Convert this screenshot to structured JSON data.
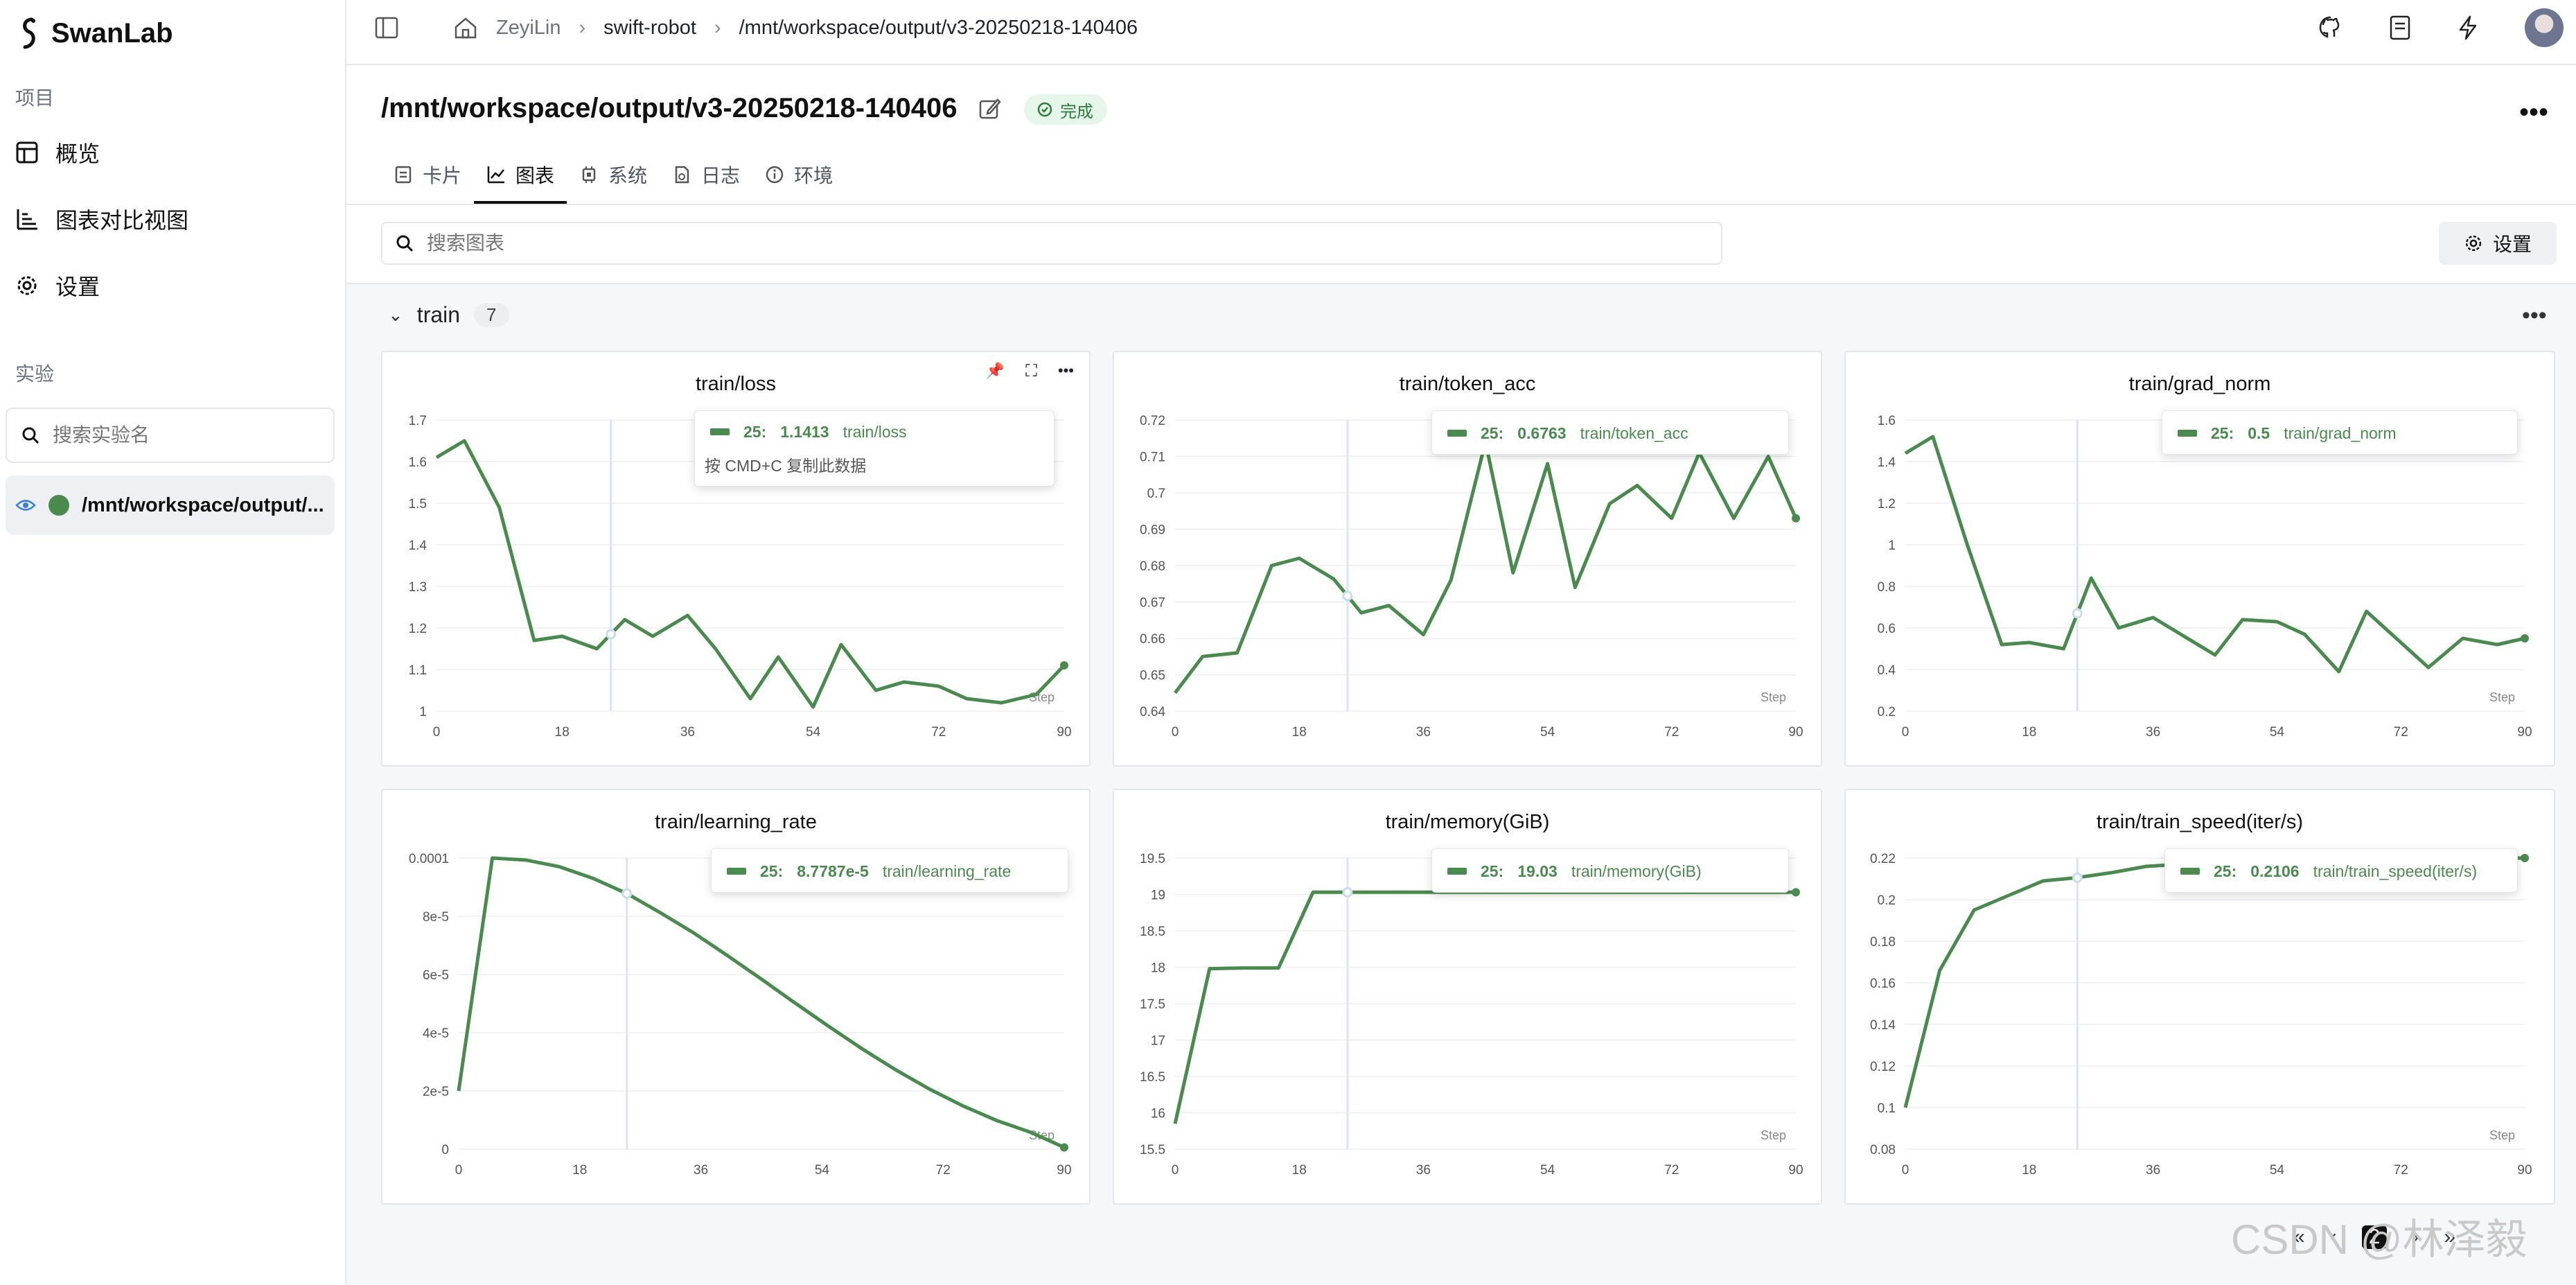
{
  "app": {
    "name": "SwanLab"
  },
  "sidebar": {
    "project_section": "项目",
    "nav": [
      {
        "label": "概览",
        "icon": "table-icon"
      },
      {
        "label": "图表对比视图",
        "icon": "bar-chart-icon"
      },
      {
        "label": "设置",
        "icon": "gear-icon"
      }
    ],
    "experiment_section": "实验",
    "search_placeholder": "搜索实验名",
    "experiment": {
      "name": "/mnt/workspace/output/...",
      "color": "#4a8a4f"
    }
  },
  "topbar": {
    "breadcrumb": [
      "ZeyiLin",
      "swift-robot",
      "/mnt/workspace/output/v3-20250218-140406"
    ]
  },
  "header": {
    "title": "/mnt/workspace/output/v3-20250218-140406",
    "status": "完成",
    "tabs": [
      {
        "label": "卡片",
        "icon": "card-icon"
      },
      {
        "label": "图表",
        "icon": "line-chart-icon"
      },
      {
        "label": "系统",
        "icon": "chip-icon"
      },
      {
        "label": "日志",
        "icon": "log-icon"
      },
      {
        "label": "环境",
        "icon": "info-icon"
      }
    ],
    "active_tab": "图表"
  },
  "toolbar": {
    "search_placeholder": "搜索图表",
    "settings_label": "设置"
  },
  "group": {
    "name": "train",
    "count": "7"
  },
  "colors": {
    "series": "#4a8a4f",
    "hover_line": "#d6e6f5"
  },
  "pager": {
    "first": "«",
    "prev": "‹",
    "current": "2",
    "next": "›",
    "last": "»"
  },
  "watermark": "CSDN @林泽毅",
  "chart_data": [
    {
      "type": "line",
      "title": "train/loss",
      "xlabel": "Step",
      "x": [
        0,
        4,
        9,
        14,
        18,
        23,
        27,
        31,
        36,
        40,
        45,
        49,
        54,
        58,
        63,
        67,
        72,
        76,
        81,
        86,
        90
      ],
      "series": [
        {
          "values": [
            1.61,
            1.65,
            1.49,
            1.17,
            1.18,
            1.15,
            1.22,
            1.18,
            1.23,
            1.15,
            1.03,
            1.13,
            1.01,
            1.16,
            1.05,
            1.07,
            1.06,
            1.03,
            1.02,
            1.04,
            1.11
          ]
        }
      ],
      "xlim": [
        0,
        90
      ],
      "ylim": [
        1,
        1.7
      ],
      "xticks": [
        "0",
        "18",
        "36",
        "54",
        "72",
        "90"
      ],
      "yticks": [
        "1",
        "1.1",
        "1.2",
        "1.3",
        "1.4",
        "1.5",
        "1.6",
        "1.7"
      ],
      "hover": {
        "step": "25:",
        "value": "1.1413",
        "name": "train/loss",
        "hint": "按 CMD+C 复制此数据"
      }
    },
    {
      "type": "line",
      "title": "train/token_acc",
      "xlabel": "Step",
      "x": [
        0,
        4,
        9,
        14,
        18,
        23,
        27,
        31,
        36,
        40,
        45,
        49,
        54,
        58,
        63,
        67,
        72,
        76,
        81,
        86,
        90
      ],
      "series": [
        {
          "values": [
            0.645,
            0.655,
            0.656,
            0.68,
            0.682,
            0.6763,
            0.667,
            0.669,
            0.661,
            0.676,
            0.714,
            0.678,
            0.708,
            0.674,
            0.697,
            0.702,
            0.693,
            0.711,
            0.693,
            0.71,
            0.693
          ]
        }
      ],
      "xlim": [
        0,
        90
      ],
      "ylim": [
        0.64,
        0.72
      ],
      "xticks": [
        "0",
        "18",
        "36",
        "54",
        "72",
        "90"
      ],
      "yticks": [
        "0.64",
        "0.65",
        "0.66",
        "0.67",
        "0.68",
        "0.69",
        "0.7",
        "0.71",
        "0.72"
      ],
      "hover": {
        "step": "25:",
        "value": "0.6763",
        "name": "train/token_acc"
      }
    },
    {
      "type": "line",
      "title": "train/grad_norm",
      "xlabel": "Step",
      "x": [
        0,
        4,
        9,
        14,
        18,
        23,
        27,
        31,
        36,
        40,
        45,
        49,
        54,
        58,
        63,
        67,
        72,
        76,
        81,
        86,
        90
      ],
      "series": [
        {
          "values": [
            1.44,
            1.52,
            1.0,
            0.52,
            0.53,
            0.5,
            0.84,
            0.6,
            0.65,
            0.57,
            0.47,
            0.64,
            0.63,
            0.57,
            0.39,
            0.68,
            0.53,
            0.41,
            0.55,
            0.52,
            0.55
          ]
        }
      ],
      "xlim": [
        0,
        90
      ],
      "ylim": [
        0.2,
        1.6
      ],
      "xticks": [
        "0",
        "18",
        "36",
        "54",
        "72",
        "90"
      ],
      "yticks": [
        "0.2",
        "0.4",
        "0.6",
        "0.8",
        "1",
        "1.2",
        "1.4",
        "1.6"
      ],
      "hover": {
        "step": "25:",
        "value": "0.5",
        "name": "train/grad_norm"
      }
    },
    {
      "type": "line",
      "title": "train/learning_rate",
      "xlabel": "Step",
      "x": [
        0,
        5,
        10,
        15,
        20,
        25,
        30,
        35,
        40,
        45,
        50,
        55,
        60,
        65,
        70,
        75,
        80,
        85,
        90
      ],
      "series": [
        {
          "values": [
            2e-05,
            0.0001,
            9.93e-05,
            9.7e-05,
            9.3e-05,
            8.78e-05,
            8.12e-05,
            7.42e-05,
            6.64e-05,
            5.84e-05,
            5.02e-05,
            4.22e-05,
            3.44e-05,
            2.72e-05,
            2.06e-05,
            1.48e-05,
            9.8e-06,
            5.8e-06,
            6e-07
          ]
        }
      ],
      "xlim": [
        0,
        90
      ],
      "ylim": [
        0,
        0.0001
      ],
      "xticks": [
        "0",
        "18",
        "36",
        "54",
        "72",
        "90"
      ],
      "yticks": [
        "0",
        "2e-5",
        "4e-5",
        "6e-5",
        "8e-5",
        "0.0001"
      ],
      "hover": {
        "step": "25:",
        "value": "8.7787e-5",
        "name": "train/learning_rate"
      }
    },
    {
      "type": "line",
      "title": "train/memory(GiB)",
      "xlabel": "Step",
      "x": [
        0,
        5,
        10,
        15,
        20,
        25,
        30,
        35,
        40,
        45,
        50,
        55,
        60,
        65,
        70,
        75,
        80,
        85,
        90
      ],
      "series": [
        {
          "values": [
            15.85,
            17.98,
            17.99,
            17.99,
            19.03,
            19.03,
            19.03,
            19.03,
            19.03,
            19.03,
            19.03,
            19.03,
            19.03,
            19.03,
            19.03,
            19.03,
            19.03,
            19.03,
            19.03
          ]
        }
      ],
      "xlim": [
        0,
        90
      ],
      "ylim": [
        15.5,
        19.5
      ],
      "xticks": [
        "0",
        "18",
        "36",
        "54",
        "72",
        "90"
      ],
      "yticks": [
        "15.5",
        "16",
        "16.5",
        "17",
        "17.5",
        "18",
        "18.5",
        "19",
        "19.5"
      ],
      "hover": {
        "step": "25:",
        "value": "19.03",
        "name": "train/memory(GiB)"
      }
    },
    {
      "type": "line",
      "title": "train/train_speed(iter/s)",
      "xlabel": "Step",
      "x": [
        0,
        5,
        10,
        15,
        20,
        25,
        30,
        35,
        40,
        45,
        50,
        55,
        60,
        65,
        70,
        75,
        80,
        85,
        90
      ],
      "series": [
        {
          "values": [
            0.1,
            0.166,
            0.195,
            0.202,
            0.209,
            0.2106,
            0.213,
            0.216,
            0.217,
            0.217,
            0.218,
            0.218,
            0.219,
            0.219,
            0.219,
            0.219,
            0.219,
            0.22,
            0.22
          ]
        }
      ],
      "xlim": [
        0,
        90
      ],
      "ylim": [
        0.08,
        0.22
      ],
      "xticks": [
        "0",
        "18",
        "36",
        "54",
        "72",
        "90"
      ],
      "yticks": [
        "0.08",
        "0.1",
        "0.12",
        "0.14",
        "0.16",
        "0.18",
        "0.2",
        "0.22"
      ],
      "hover": {
        "step": "25:",
        "value": "0.2106",
        "name": "train/train_speed(iter/s)"
      }
    }
  ]
}
